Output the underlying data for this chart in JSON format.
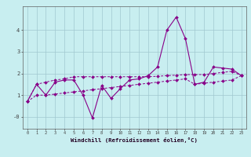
{
  "xlabel": "Windchill (Refroidissement éolien,°C)",
  "background_color": "#c8eef0",
  "grid_color": "#a0c8d0",
  "line_color": "#880088",
  "x_values": [
    0,
    1,
    2,
    3,
    4,
    5,
    6,
    7,
    8,
    9,
    10,
    11,
    12,
    13,
    14,
    15,
    16,
    17,
    18,
    19,
    20,
    21,
    22,
    23
  ],
  "series1": [
    0.7,
    1.5,
    1.0,
    1.6,
    1.7,
    1.7,
    1.0,
    -0.05,
    1.45,
    0.85,
    1.3,
    1.7,
    1.75,
    1.9,
    2.3,
    4.0,
    4.6,
    3.6,
    1.5,
    1.6,
    2.3,
    2.25,
    2.2,
    1.9
  ],
  "series2": [
    0.7,
    1.5,
    1.6,
    1.7,
    1.75,
    1.85,
    1.85,
    1.85,
    1.85,
    1.85,
    1.85,
    1.85,
    1.85,
    1.85,
    1.87,
    1.9,
    1.92,
    1.95,
    1.95,
    1.95,
    2.0,
    2.05,
    2.1,
    1.9
  ],
  "series3": [
    0.7,
    1.0,
    1.0,
    1.05,
    1.1,
    1.15,
    1.2,
    1.25,
    1.3,
    1.35,
    1.4,
    1.45,
    1.5,
    1.55,
    1.6,
    1.65,
    1.7,
    1.75,
    1.5,
    1.55,
    1.6,
    1.65,
    1.7,
    1.9
  ],
  "ylim": [
    -0.55,
    5.1
  ],
  "xlim": [
    -0.5,
    23.5
  ],
  "yticks": [
    0,
    1,
    2,
    3,
    4
  ],
  "ytick_labels": [
    "-0",
    "1",
    "2",
    "3",
    "4"
  ]
}
